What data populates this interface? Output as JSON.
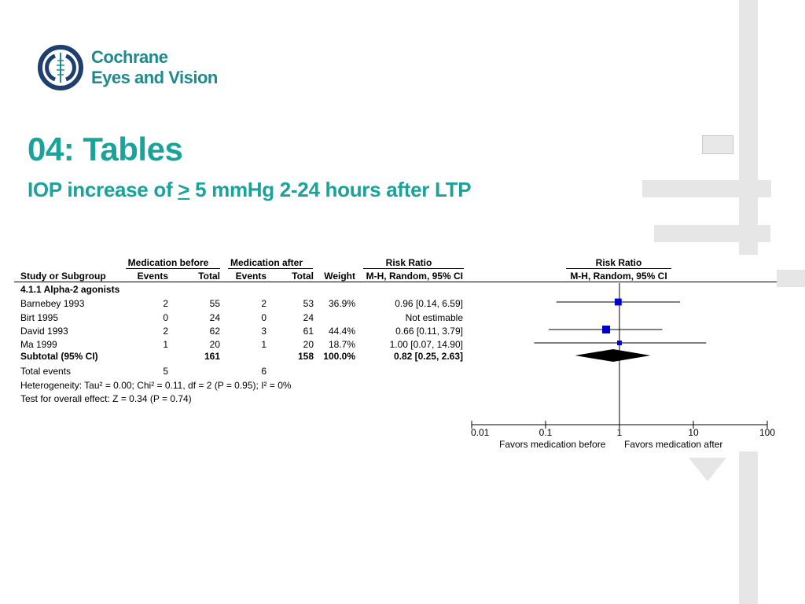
{
  "logo": {
    "line1": "Cochrane",
    "line2": "Eyes and Vision"
  },
  "title": "04: Tables",
  "subtitle": {
    "pre": "IOP increase of ",
    "ge": ">",
    "post": " 5 mmHg 2-24 hours after LTP"
  },
  "table": {
    "group_headers": {
      "med_before": "Medication before",
      "med_after": "Medication after",
      "risk_ratio": "Risk Ratio",
      "plot_risk_ratio": "Risk Ratio"
    },
    "col_headers": {
      "study": "Study or Subgroup",
      "events1": "Events",
      "total1": "Total",
      "events2": "Events",
      "total2": "Total",
      "weight": "Weight",
      "method": "M-H, Random, 95% CI",
      "plot_method": "M-H, Random, 95% CI"
    },
    "subgroup_title": "4.1.1 Alpha-2 agonists",
    "rows": [
      {
        "study": "Barnebey 1993",
        "events1": "2",
        "total1": "55",
        "events2": "2",
        "total2": "53",
        "weight": "36.9%",
        "rr": "0.96 [0.14, 6.59]"
      },
      {
        "study": "Birt 1995",
        "events1": "0",
        "total1": "24",
        "events2": "0",
        "total2": "24",
        "weight": "",
        "rr": "Not estimable"
      },
      {
        "study": "David 1993",
        "events1": "2",
        "total1": "62",
        "events2": "3",
        "total2": "61",
        "weight": "44.4%",
        "rr": "0.66 [0.11, 3.79]"
      },
      {
        "study": "Ma 1999",
        "events1": "1",
        "total1": "20",
        "events2": "1",
        "total2": "20",
        "weight": "18.7%",
        "rr": "1.00 [0.07, 14.90]"
      }
    ],
    "subtotal": {
      "label": "Subtotal (95% CI)",
      "total1": "161",
      "total2": "158",
      "weight": "100.0%",
      "rr": "0.82 [0.25, 2.63]"
    },
    "total_events": {
      "label": "Total events",
      "events1": "5",
      "events2": "6"
    },
    "heterogeneity": "Heterogeneity: Tau² = 0.00; Chi² = 0.11, df = 2 (P = 0.95); I² = 0%",
    "overall_effect": "Test for overall effect: Z = 0.34 (P = 0.74)"
  },
  "chart_data": {
    "type": "scatter",
    "title": "Risk Ratio",
    "subtitle": "M-H, Random, 95% CI",
    "x_scale": "log",
    "xlim": [
      0.01,
      100
    ],
    "x_ticks": [
      "0.01",
      "0.1",
      "1",
      "10",
      "100"
    ],
    "xlabel_left": "Favors medication before",
    "xlabel_right": "Favors medication after",
    "reference_line": 1,
    "marker_color": "#0000cc",
    "series": [
      {
        "study": "Barnebey 1993",
        "rr": 0.96,
        "lower": 0.14,
        "upper": 6.59,
        "weight": 36.9
      },
      {
        "study": "Birt 1995",
        "rr": null,
        "lower": null,
        "upper": null,
        "weight": null
      },
      {
        "study": "David 1993",
        "rr": 0.66,
        "lower": 0.11,
        "upper": 3.79,
        "weight": 44.4
      },
      {
        "study": "Ma 1999",
        "rr": 1.0,
        "lower": 0.07,
        "upper": 14.9,
        "weight": 18.7
      }
    ],
    "pooled": {
      "rr": 0.82,
      "lower": 0.25,
      "upper": 2.63
    }
  }
}
